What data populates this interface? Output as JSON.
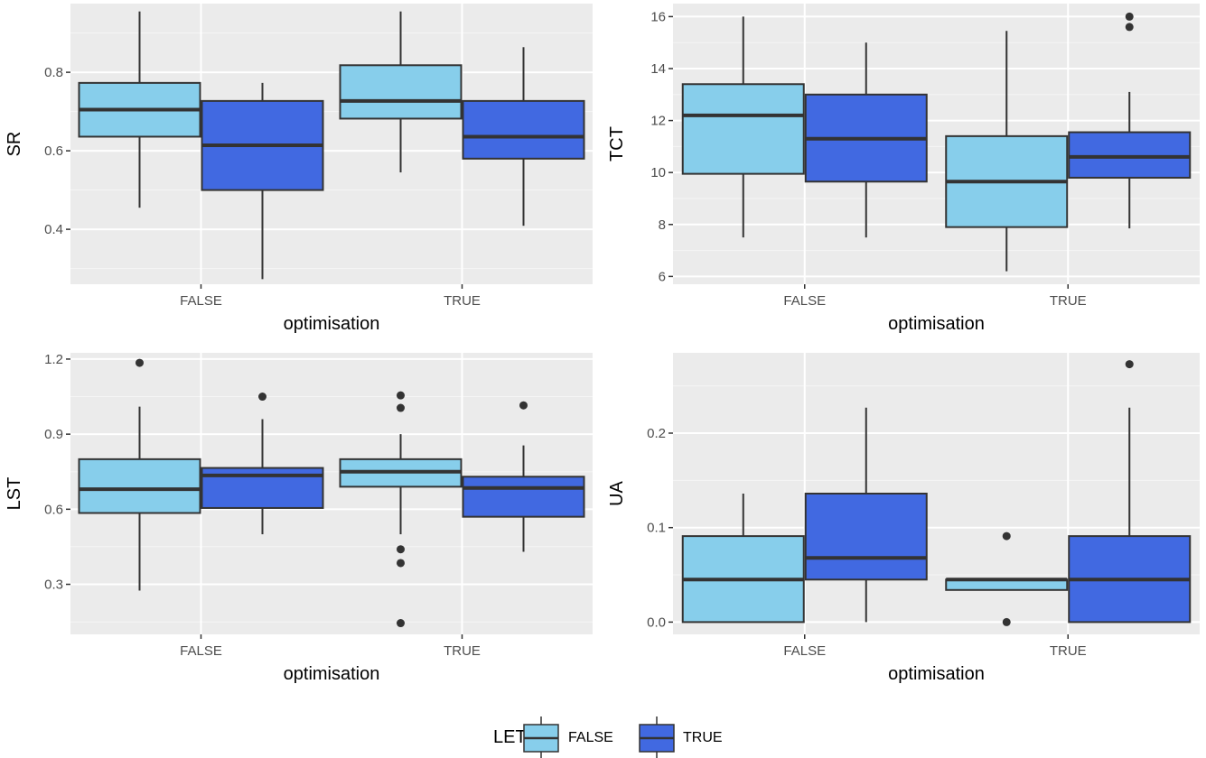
{
  "colors": {
    "panel_bg": "#EBEBEB",
    "grid_major": "#FFFFFF",
    "grid_minor": "#F5F5F5",
    "box_edge": "#333333",
    "let_false": "#87CEEB",
    "let_true": "#4169E1"
  },
  "legend": {
    "title": "LET",
    "position": "bottom",
    "entries": [
      {
        "label": "FALSE",
        "color": "#87CEEB"
      },
      {
        "label": "TRUE",
        "color": "#4169E1"
      }
    ]
  },
  "chart_data": [
    {
      "type": "boxplot",
      "xlabel": "optimisation",
      "ylabel": "SR",
      "categories": [
        "FALSE",
        "TRUE"
      ],
      "ylim": [
        0.26,
        0.975
      ],
      "yticks": [
        0.4,
        0.6,
        0.8
      ],
      "ytick_labels": [
        "0.4",
        "0.6",
        "0.8"
      ],
      "groups": [
        {
          "x": "FALSE",
          "let": "FALSE",
          "lower": 0.455,
          "q1": 0.636,
          "median": 0.705,
          "q3": 0.773,
          "upper": 0.955,
          "outliers": []
        },
        {
          "x": "FALSE",
          "let": "TRUE",
          "lower": 0.273,
          "q1": 0.5,
          "median": 0.614,
          "q3": 0.727,
          "upper": 0.773,
          "outliers": []
        },
        {
          "x": "TRUE",
          "let": "FALSE",
          "lower": 0.545,
          "q1": 0.682,
          "median": 0.727,
          "q3": 0.818,
          "upper": 0.955,
          "outliers": []
        },
        {
          "x": "TRUE",
          "let": "TRUE",
          "lower": 0.409,
          "q1": 0.58,
          "median": 0.636,
          "q3": 0.727,
          "upper": 0.864,
          "outliers": []
        }
      ]
    },
    {
      "type": "boxplot",
      "xlabel": "optimisation",
      "ylabel": "TCT",
      "categories": [
        "FALSE",
        "TRUE"
      ],
      "ylim": [
        5.7,
        16.5
      ],
      "yticks": [
        6,
        8,
        10,
        12,
        14,
        16
      ],
      "ytick_labels": [
        "6",
        "8",
        "10",
        "12",
        "14",
        "16"
      ],
      "groups": [
        {
          "x": "FALSE",
          "let": "FALSE",
          "lower": 7.5,
          "q1": 9.95,
          "median": 12.2,
          "q3": 13.4,
          "upper": 16.0,
          "outliers": []
        },
        {
          "x": "FALSE",
          "let": "TRUE",
          "lower": 7.5,
          "q1": 9.65,
          "median": 11.3,
          "q3": 13.0,
          "upper": 15.0,
          "outliers": []
        },
        {
          "x": "TRUE",
          "let": "FALSE",
          "lower": 6.2,
          "q1": 7.9,
          "median": 9.65,
          "q3": 11.4,
          "upper": 15.45,
          "outliers": []
        },
        {
          "x": "TRUE",
          "let": "TRUE",
          "lower": 7.85,
          "q1": 9.8,
          "median": 10.6,
          "q3": 11.55,
          "upper": 13.1,
          "outliers": [
            15.6,
            16.0
          ]
        }
      ]
    },
    {
      "type": "boxplot",
      "xlabel": "optimisation",
      "ylabel": "LST",
      "categories": [
        "FALSE",
        "TRUE"
      ],
      "ylim": [
        0.1,
        1.225
      ],
      "yticks": [
        0.3,
        0.6,
        0.9,
        1.2
      ],
      "ytick_labels": [
        "0.3",
        "0.6",
        "0.9",
        "1.2"
      ],
      "groups": [
        {
          "x": "FALSE",
          "let": "FALSE",
          "lower": 0.275,
          "q1": 0.585,
          "median": 0.68,
          "q3": 0.8,
          "upper": 1.01,
          "outliers": [
            1.185
          ]
        },
        {
          "x": "FALSE",
          "let": "TRUE",
          "lower": 0.5,
          "q1": 0.605,
          "median": 0.735,
          "q3": 0.765,
          "upper": 0.96,
          "outliers": [
            1.05
          ]
        },
        {
          "x": "TRUE",
          "let": "FALSE",
          "lower": 0.5,
          "q1": 0.69,
          "median": 0.75,
          "q3": 0.8,
          "upper": 0.9,
          "outliers": [
            1.055,
            1.005,
            0.44,
            0.385,
            0.145
          ]
        },
        {
          "x": "TRUE",
          "let": "TRUE",
          "lower": 0.43,
          "q1": 0.57,
          "median": 0.685,
          "q3": 0.73,
          "upper": 0.855,
          "outliers": [
            1.015
          ]
        }
      ]
    },
    {
      "type": "boxplot",
      "xlabel": "optimisation",
      "ylabel": "UA",
      "categories": [
        "FALSE",
        "TRUE"
      ],
      "ylim": [
        -0.013,
        0.285
      ],
      "yticks": [
        0.0,
        0.1,
        0.2
      ],
      "ytick_labels": [
        "0.0",
        "0.1",
        "0.2"
      ],
      "groups": [
        {
          "x": "FALSE",
          "let": "FALSE",
          "lower": 0.0,
          "q1": 0.0,
          "median": 0.045,
          "q3": 0.091,
          "upper": 0.136,
          "outliers": []
        },
        {
          "x": "FALSE",
          "let": "TRUE",
          "lower": 0.0,
          "q1": 0.045,
          "median": 0.068,
          "q3": 0.136,
          "upper": 0.227,
          "outliers": []
        },
        {
          "x": "TRUE",
          "let": "FALSE",
          "lower": 0.034,
          "q1": 0.034,
          "median": 0.045,
          "q3": 0.045,
          "upper": 0.045,
          "outliers": [
            0.091,
            0.0
          ]
        },
        {
          "x": "TRUE",
          "let": "TRUE",
          "lower": 0.0,
          "q1": 0.0,
          "median": 0.045,
          "q3": 0.091,
          "upper": 0.227,
          "outliers": [
            0.273
          ]
        }
      ]
    }
  ]
}
